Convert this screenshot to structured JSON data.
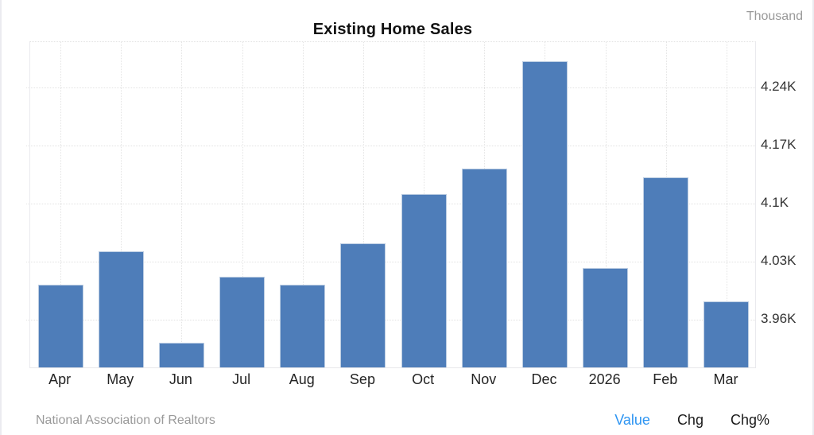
{
  "header": {
    "title": "Existing Home Sales",
    "unit_label": "Thousand"
  },
  "footer": {
    "source": "National Association of Realtors",
    "legend": [
      {
        "label": "Value",
        "active": true
      },
      {
        "label": "Chg",
        "active": false
      },
      {
        "label": "Chg%",
        "active": false
      }
    ]
  },
  "colors": {
    "bar": "#4e7db9",
    "bar_border": "#bccde2",
    "active_link": "#2e95f2",
    "muted_text": "#999999"
  },
  "chart_data": {
    "type": "bar",
    "title": "Existing Home Sales",
    "unit": "Thousand",
    "categories": [
      "Apr",
      "May",
      "Jun",
      "Jul",
      "Aug",
      "Sep",
      "Oct",
      "Nov",
      "Dec",
      "2026",
      "Feb",
      "Mar"
    ],
    "values": [
      4.0,
      4.04,
      3.93,
      4.01,
      4.0,
      4.05,
      4.11,
      4.14,
      4.27,
      4.02,
      4.13,
      3.98
    ],
    "ylim": [
      3.9,
      4.295
    ],
    "yticks": [
      {
        "value": 3.96,
        "label": "3.96K"
      },
      {
        "value": 4.03,
        "label": "4.03K"
      },
      {
        "value": 4.1,
        "label": "4.1K"
      },
      {
        "value": 4.17,
        "label": "4.17K"
      },
      {
        "value": 4.24,
        "label": "4.24K"
      }
    ],
    "grid": true,
    "legend_position": "none",
    "xlabel": "",
    "ylabel": "Thousand",
    "source": "National Association of Realtors"
  }
}
